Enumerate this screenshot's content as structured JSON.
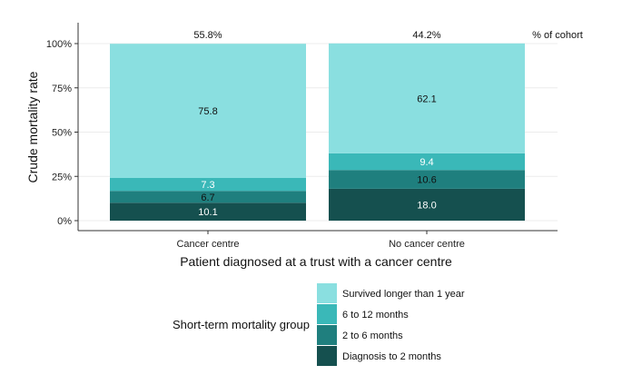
{
  "chart_data": {
    "type": "bar",
    "stacked": true,
    "xlabel": "Patient diagnosed at a trust with a cancer centre",
    "ylabel": "Crude mortality rate",
    "ylim": [
      0,
      100
    ],
    "y_ticks": [
      "0%",
      "25%",
      "50%",
      "75%",
      "100%"
    ],
    "y_tick_values": [
      0,
      25,
      50,
      75,
      100
    ],
    "grid": true,
    "categories": [
      "Cancer centre",
      "No cancer centre"
    ],
    "top_labels": [
      "55.8%",
      "44.2%"
    ],
    "top_labels_header": "% of cohort",
    "series": [
      {
        "name": "Diagnosis to 2 months",
        "values": [
          10.1,
          18.0
        ],
        "labels": [
          "10.1",
          "18.0"
        ],
        "color": "#15504f",
        "label_color": "#ffffff"
      },
      {
        "name": "2 to 6 months",
        "values": [
          6.7,
          10.6
        ],
        "labels": [
          "6.7",
          "10.6"
        ],
        "color": "#1f7f7e",
        "label_color": "#111111"
      },
      {
        "name": "6 to 12 months",
        "values": [
          7.3,
          9.4
        ],
        "labels": [
          "7.3",
          "9.4"
        ],
        "color": "#3ab8b8",
        "label_color": "#ffffff"
      },
      {
        "name": "Survived longer than 1 year",
        "values": [
          75.8,
          62.1
        ],
        "labels": [
          "75.8",
          "62.1"
        ],
        "color": "#8adfe0",
        "label_color": "#111111"
      }
    ],
    "legend": {
      "title": "Short-term mortality group",
      "placement": "bottom",
      "order": [
        "Survived longer than 1 year",
        "6 to 12 months",
        "2 to 6 months",
        "Diagnosis to 2 months"
      ]
    }
  }
}
